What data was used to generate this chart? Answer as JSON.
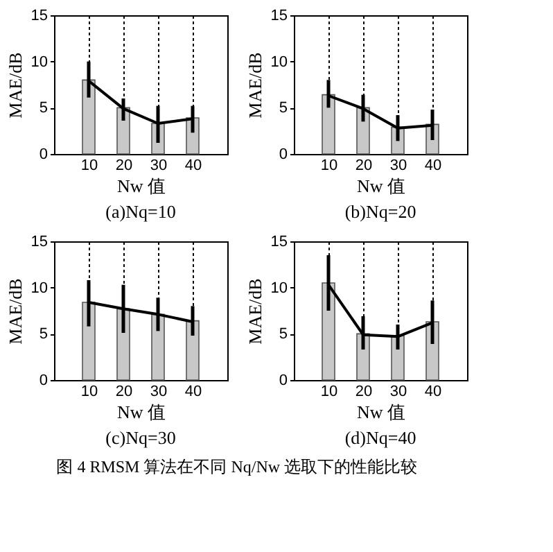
{
  "chart_data": [
    {
      "type": "bar",
      "title": "(a)Nq=10",
      "xlabel": "Nw 值",
      "ylabel": "MAE/dB",
      "x": [
        10,
        20,
        30,
        40
      ],
      "xlim": [
        0,
        50
      ],
      "xticks": [
        10,
        20,
        30,
        40
      ],
      "ylim": [
        0,
        15
      ],
      "yticks": [
        0,
        5,
        10,
        15
      ],
      "grid": "x",
      "series": [
        {
          "color": "#c8c8c8",
          "values": [
            8.0,
            5.0,
            3.3,
            3.9
          ]
        },
        {
          "type": "line",
          "color": "#000000",
          "values": [
            7.9,
            4.9,
            3.3,
            3.8
          ],
          "errors": [
            [
              6.1,
              10.0
            ],
            [
              3.6,
              6.0
            ],
            [
              1.2,
              5.2
            ],
            [
              2.3,
              5.2
            ]
          ]
        }
      ]
    },
    {
      "type": "bar",
      "title": "(b)Nq=20",
      "xlabel": "Nw 值",
      "ylabel": "MAE/dB",
      "x": [
        10,
        20,
        30,
        40
      ],
      "xlim": [
        0,
        50
      ],
      "xticks": [
        10,
        20,
        30,
        40
      ],
      "ylim": [
        0,
        15
      ],
      "yticks": [
        0,
        5,
        10,
        15
      ],
      "grid": "x",
      "series": [
        {
          "color": "#c8c8c8",
          "values": [
            6.4,
            5.0,
            2.9,
            3.2
          ]
        },
        {
          "type": "line",
          "color": "#000000",
          "values": [
            6.3,
            4.9,
            2.8,
            3.1
          ],
          "errors": [
            [
              5.0,
              8.0
            ],
            [
              3.5,
              6.4
            ],
            [
              1.4,
              4.2
            ],
            [
              1.5,
              4.8
            ]
          ]
        }
      ]
    },
    {
      "type": "bar",
      "title": "(c)Nq=30",
      "xlabel": "Nw 值",
      "ylabel": "MAE/dB",
      "x": [
        10,
        20,
        30,
        40
      ],
      "xlim": [
        0,
        50
      ],
      "xticks": [
        10,
        20,
        30,
        40
      ],
      "ylim": [
        0,
        15
      ],
      "yticks": [
        0,
        5,
        10,
        15
      ],
      "grid": "x",
      "series": [
        {
          "color": "#c8c8c8",
          "values": [
            8.4,
            7.7,
            7.1,
            6.4
          ]
        },
        {
          "type": "line",
          "color": "#000000",
          "values": [
            8.4,
            7.7,
            7.1,
            6.3
          ],
          "errors": [
            [
              5.8,
              10.8
            ],
            [
              5.1,
              10.3
            ],
            [
              5.3,
              8.9
            ],
            [
              4.8,
              8.0
            ]
          ]
        }
      ]
    },
    {
      "type": "bar",
      "title": "(d)Nq=40",
      "xlabel": "Nw 值",
      "ylabel": "MAE/dB",
      "x": [
        10,
        20,
        30,
        40
      ],
      "xlim": [
        0,
        50
      ],
      "xticks": [
        10,
        20,
        30,
        40
      ],
      "ylim": [
        0,
        15
      ],
      "yticks": [
        0,
        5,
        10,
        15
      ],
      "grid": "x",
      "annotations": [
        "图 4  RMSM 算法在不同 Nq/Nw 选取下的性能比较"
      ],
      "series": [
        {
          "color": "#c8c8c8",
          "values": [
            10.5,
            5.0,
            4.8,
            6.3
          ]
        },
        {
          "type": "line",
          "color": "#000000",
          "values": [
            10.3,
            4.9,
            4.7,
            6.2
          ],
          "errors": [
            [
              7.5,
              13.5
            ],
            [
              3.3,
              6.9
            ],
            [
              3.3,
              6.0
            ],
            [
              3.9,
              8.6
            ]
          ]
        }
      ]
    }
  ]
}
